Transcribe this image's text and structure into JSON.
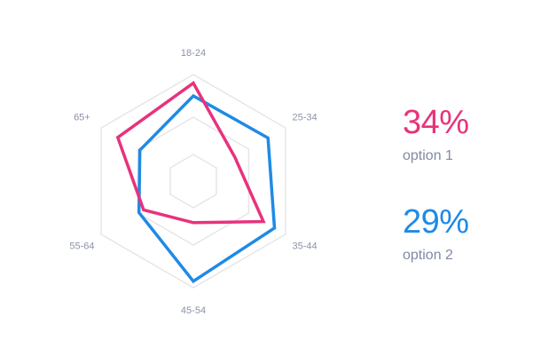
{
  "chart_data": {
    "type": "radar",
    "categories": [
      "18-24",
      "25-34",
      "35-44",
      "45-54",
      "55-64",
      "65+"
    ],
    "max": 1.0,
    "grid_levels": [
      0.25,
      0.6,
      1.0
    ],
    "series": [
      {
        "name": "option 1",
        "percent": "34%",
        "color": "#e8327c",
        "values": [
          0.92,
          0.45,
          0.76,
          0.39,
          0.54,
          0.82
        ]
      },
      {
        "name": "option 2",
        "percent": "29%",
        "color": "#1f8ae6",
        "values": [
          0.8,
          0.81,
          0.88,
          0.94,
          0.59,
          0.58
        ]
      }
    ]
  },
  "legend": [
    {
      "value": "34%",
      "label": "option 1",
      "color": "#e8327c"
    },
    {
      "value": "29%",
      "label": "option 2",
      "color": "#1f8ae6"
    }
  ],
  "colors": {
    "grid": "#e6e6e6",
    "axis_text": "#8a93a8",
    "legend_text": "#7f8aa3"
  }
}
